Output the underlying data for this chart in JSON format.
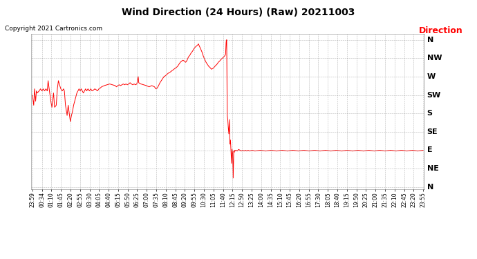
{
  "title": "Wind Direction (24 Hours) (Raw) 20211003",
  "copyright": "Copyright 2021 Cartronics.com",
  "legend_label": "Direction",
  "y_labels": [
    "N",
    "NW",
    "W",
    "SW",
    "S",
    "SE",
    "E",
    "NE",
    "N"
  ],
  "y_ticks": [
    360,
    315,
    270,
    225,
    180,
    135,
    90,
    45,
    0
  ],
  "line_color": "#ff0000",
  "grid_color": "#888888",
  "background_color": "#ffffff",
  "title_color": "#000000",
  "copyright_color": "#000000",
  "legend_color": "#ff0000",
  "x_labels": [
    "23:59",
    "00:34",
    "01:10",
    "01:45",
    "02:20",
    "02:55",
    "03:30",
    "04:05",
    "04:40",
    "05:15",
    "05:50",
    "06:25",
    "07:00",
    "07:35",
    "08:10",
    "08:45",
    "09:20",
    "09:55",
    "10:30",
    "11:05",
    "11:40",
    "12:15",
    "12:50",
    "13:25",
    "14:00",
    "14:35",
    "15:10",
    "15:45",
    "16:20",
    "16:55",
    "17:30",
    "18:05",
    "18:40",
    "19:15",
    "19:50",
    "20:25",
    "21:00",
    "21:35",
    "22:10",
    "22:45",
    "23:20",
    "23:55"
  ],
  "time_series": [
    [
      0,
      225
    ],
    [
      5,
      200
    ],
    [
      8,
      240
    ],
    [
      12,
      210
    ],
    [
      15,
      235
    ],
    [
      18,
      230
    ],
    [
      25,
      235
    ],
    [
      30,
      240
    ],
    [
      35,
      235
    ],
    [
      40,
      240
    ],
    [
      45,
      235
    ],
    [
      50,
      240
    ],
    [
      55,
      235
    ],
    [
      58,
      260
    ],
    [
      62,
      240
    ],
    [
      68,
      210
    ],
    [
      72,
      195
    ],
    [
      78,
      230
    ],
    [
      82,
      195
    ],
    [
      88,
      200
    ],
    [
      92,
      240
    ],
    [
      96,
      260
    ],
    [
      100,
      250
    ],
    [
      105,
      240
    ],
    [
      110,
      235
    ],
    [
      115,
      240
    ],
    [
      118,
      235
    ],
    [
      122,
      200
    ],
    [
      128,
      175
    ],
    [
      132,
      200
    ],
    [
      136,
      180
    ],
    [
      140,
      160
    ],
    [
      144,
      175
    ],
    [
      148,
      185
    ],
    [
      152,
      200
    ],
    [
      156,
      210
    ],
    [
      160,
      220
    ],
    [
      164,
      230
    ],
    [
      168,
      235
    ],
    [
      172,
      240
    ],
    [
      176,
      235
    ],
    [
      180,
      240
    ],
    [
      184,
      235
    ],
    [
      188,
      230
    ],
    [
      192,
      235
    ],
    [
      196,
      240
    ],
    [
      200,
      235
    ],
    [
      205,
      240
    ],
    [
      210,
      235
    ],
    [
      215,
      240
    ],
    [
      220,
      235
    ],
    [
      225,
      237
    ],
    [
      230,
      240
    ],
    [
      235,
      238
    ],
    [
      240,
      235
    ],
    [
      245,
      240
    ],
    [
      250,
      242
    ],
    [
      255,
      245
    ],
    [
      265,
      248
    ],
    [
      275,
      250
    ],
    [
      285,
      252
    ],
    [
      295,
      250
    ],
    [
      305,
      248
    ],
    [
      310,
      245
    ],
    [
      315,
      248
    ],
    [
      320,
      250
    ],
    [
      325,
      248
    ],
    [
      330,
      250
    ],
    [
      335,
      252
    ],
    [
      340,
      250
    ],
    [
      345,
      252
    ],
    [
      350,
      250
    ],
    [
      355,
      252
    ],
    [
      360,
      255
    ],
    [
      365,
      252
    ],
    [
      370,
      250
    ],
    [
      375,
      252
    ],
    [
      380,
      250
    ],
    [
      385,
      252
    ],
    [
      390,
      270
    ],
    [
      392,
      255
    ],
    [
      400,
      252
    ],
    [
      410,
      250
    ],
    [
      420,
      248
    ],
    [
      430,
      245
    ],
    [
      440,
      248
    ],
    [
      450,
      245
    ],
    [
      455,
      240
    ],
    [
      460,
      242
    ],
    [
      465,
      248
    ],
    [
      470,
      255
    ],
    [
      475,
      260
    ],
    [
      480,
      265
    ],
    [
      485,
      270
    ],
    [
      490,
      272
    ],
    [
      495,
      275
    ],
    [
      500,
      278
    ],
    [
      505,
      280
    ],
    [
      510,
      282
    ],
    [
      515,
      285
    ],
    [
      520,
      287
    ],
    [
      525,
      290
    ],
    [
      530,
      292
    ],
    [
      535,
      295
    ],
    [
      540,
      300
    ],
    [
      545,
      305
    ],
    [
      550,
      308
    ],
    [
      555,
      310
    ],
    [
      560,
      308
    ],
    [
      565,
      305
    ],
    [
      570,
      310
    ],
    [
      575,
      318
    ],
    [
      580,
      322
    ],
    [
      585,
      328
    ],
    [
      590,
      332
    ],
    [
      595,
      338
    ],
    [
      600,
      342
    ],
    [
      605,
      345
    ],
    [
      610,
      348
    ],
    [
      612,
      350
    ],
    [
      615,
      345
    ],
    [
      620,
      338
    ],
    [
      625,
      330
    ],
    [
      630,
      320
    ],
    [
      635,
      312
    ],
    [
      640,
      305
    ],
    [
      645,
      300
    ],
    [
      650,
      295
    ],
    [
      655,
      292
    ],
    [
      660,
      288
    ],
    [
      665,
      290
    ],
    [
      670,
      293
    ],
    [
      675,
      297
    ],
    [
      680,
      300
    ],
    [
      685,
      305
    ],
    [
      690,
      308
    ],
    [
      695,
      312
    ],
    [
      700,
      315
    ],
    [
      705,
      318
    ],
    [
      710,
      322
    ],
    [
      712,
      325
    ],
    [
      714,
      355
    ],
    [
      716,
      360
    ],
    [
      718,
      175
    ],
    [
      720,
      165
    ],
    [
      722,
      145
    ],
    [
      724,
      130
    ],
    [
      726,
      165
    ],
    [
      728,
      105
    ],
    [
      730,
      115
    ],
    [
      732,
      88
    ],
    [
      734,
      58
    ],
    [
      736,
      92
    ],
    [
      738,
      82
    ],
    [
      740,
      22
    ],
    [
      742,
      88
    ],
    [
      744,
      85
    ],
    [
      746,
      90
    ],
    [
      748,
      88
    ],
    [
      750,
      90
    ],
    [
      755,
      88
    ],
    [
      760,
      92
    ],
    [
      765,
      90
    ],
    [
      770,
      88
    ],
    [
      775,
      90
    ],
    [
      780,
      88
    ],
    [
      785,
      90
    ],
    [
      790,
      88
    ],
    [
      795,
      90
    ],
    [
      800,
      88
    ],
    [
      810,
      90
    ],
    [
      820,
      88
    ],
    [
      840,
      90
    ],
    [
      860,
      88
    ],
    [
      880,
      90
    ],
    [
      900,
      88
    ],
    [
      920,
      90
    ],
    [
      940,
      88
    ],
    [
      960,
      90
    ],
    [
      980,
      88
    ],
    [
      1000,
      90
    ],
    [
      1020,
      88
    ],
    [
      1040,
      90
    ],
    [
      1060,
      88
    ],
    [
      1080,
      90
    ],
    [
      1100,
      88
    ],
    [
      1120,
      90
    ],
    [
      1140,
      88
    ],
    [
      1160,
      90
    ],
    [
      1180,
      88
    ],
    [
      1200,
      90
    ],
    [
      1220,
      88
    ],
    [
      1240,
      90
    ],
    [
      1260,
      88
    ],
    [
      1280,
      90
    ],
    [
      1300,
      88
    ],
    [
      1320,
      90
    ],
    [
      1340,
      88
    ],
    [
      1360,
      90
    ],
    [
      1380,
      88
    ],
    [
      1400,
      90
    ],
    [
      1420,
      88
    ],
    [
      1440,
      90
    ]
  ]
}
